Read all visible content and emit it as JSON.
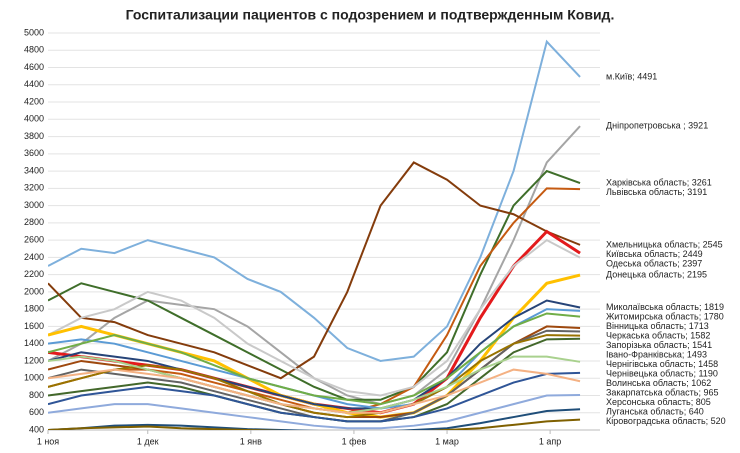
{
  "chart_data": {
    "type": "line",
    "title": "Госпитализации пациентов с подозрением и подтвержденным Ковид.",
    "x": [
      0,
      10,
      20,
      30,
      40,
      50,
      60,
      70,
      80,
      90,
      100,
      110,
      120,
      130,
      140,
      150,
      160
    ],
    "xlim": [
      0,
      166
    ],
    "xticks": [
      {
        "value": 0,
        "label": "1 ноя"
      },
      {
        "value": 30,
        "label": "1 дек"
      },
      {
        "value": 61,
        "label": "1 янв"
      },
      {
        "value": 92,
        "label": "1 фев"
      },
      {
        "value": 120,
        "label": "1 мар"
      },
      {
        "value": 151,
        "label": "1 апр"
      }
    ],
    "ylim": [
      400,
      5000
    ],
    "yticks": [
      400,
      600,
      800,
      1000,
      1200,
      1400,
      1600,
      1800,
      2000,
      2200,
      2400,
      2600,
      2800,
      3000,
      3200,
      3400,
      3600,
      3800,
      4000,
      4200,
      4400,
      4600,
      4800,
      5000
    ],
    "grid": true,
    "series": [
      {
        "label": "м.Київ; 4491",
        "color": "#7eb0dc",
        "values": [
          2300,
          2500,
          2450,
          2600,
          2500,
          2400,
          2150,
          2000,
          1700,
          1350,
          1200,
          1250,
          1600,
          2400,
          3400,
          4900,
          4491
        ]
      },
      {
        "label": "Дніпропетровська ; 3921",
        "color": "#a5a5a5",
        "values": [
          1200,
          1400,
          1700,
          1900,
          1850,
          1800,
          1600,
          1300,
          1000,
          800,
          700,
          800,
          1100,
          1800,
          2600,
          3500,
          3921
        ]
      },
      {
        "label": "Харківська область; 3261",
        "color": "#3f6e2a",
        "values": [
          1900,
          2100,
          2000,
          1900,
          1700,
          1500,
          1300,
          1100,
          900,
          750,
          750,
          900,
          1300,
          2200,
          3000,
          3400,
          3261
        ]
      },
      {
        "label": "Львівська область; 3191",
        "color": "#c55a11",
        "values": [
          900,
          1000,
          1100,
          1100,
          1050,
          950,
          850,
          750,
          650,
          600,
          700,
          900,
          1500,
          2300,
          2800,
          3200,
          3191
        ]
      },
      {
        "label": "Хмельницька область; 2545",
        "color": "#843c0c",
        "values": [
          2100,
          1700,
          1650,
          1500,
          1400,
          1300,
          1150,
          1000,
          1250,
          2000,
          3000,
          3500,
          3300,
          3000,
          2900,
          2700,
          2545
        ]
      },
      {
        "label": "Київська область; 2449",
        "color": "#e31a1c",
        "values": [
          1300,
          1250,
          1200,
          1150,
          1100,
          1000,
          900,
          800,
          700,
          650,
          600,
          700,
          1000,
          1700,
          2300,
          2700,
          2449
        ]
      },
      {
        "label": "Одеська область; 2397",
        "color": "#c9c9c9",
        "values": [
          1500,
          1700,
          1800,
          2000,
          1900,
          1700,
          1400,
          1200,
          1000,
          850,
          800,
          900,
          1200,
          1800,
          2300,
          2600,
          2397
        ]
      },
      {
        "label": "Донецька область; 2195",
        "color": "#ffc000",
        "values": [
          1500,
          1600,
          1500,
          1400,
          1300,
          1200,
          1000,
          800,
          700,
          600,
          550,
          600,
          800,
          1200,
          1700,
          2100,
          2195
        ]
      },
      {
        "label": "Миколаївська область; 1819",
        "color": "#264478",
        "values": [
          1200,
          1300,
          1250,
          1200,
          1100,
          1000,
          900,
          800,
          700,
          650,
          650,
          750,
          1000,
          1400,
          1700,
          1900,
          1819
        ]
      },
      {
        "label": "Житомирська область; 1780",
        "color": "#5b9bd5",
        "values": [
          1400,
          1450,
          1400,
          1300,
          1200,
          1100,
          1000,
          900,
          800,
          700,
          650,
          700,
          900,
          1300,
          1600,
          1800,
          1780
        ]
      },
      {
        "label": "Вінницька область; 1713",
        "color": "#70ad47",
        "values": [
          1300,
          1400,
          1500,
          1400,
          1300,
          1150,
          1000,
          900,
          800,
          750,
          700,
          800,
          1000,
          1300,
          1600,
          1750,
          1713
        ]
      },
      {
        "label": "Черкаська область; 1582",
        "color": "#9e480e",
        "values": [
          1100,
          1200,
          1150,
          1100,
          1000,
          900,
          800,
          700,
          600,
          550,
          550,
          600,
          800,
          1100,
          1400,
          1600,
          1582
        ]
      },
      {
        "label": "Запорізька область; 1541",
        "color": "#636363",
        "values": [
          1000,
          1100,
          1050,
          1000,
          950,
          850,
          750,
          650,
          550,
          500,
          500,
          600,
          800,
          1100,
          1400,
          1550,
          1541
        ]
      },
      {
        "label": "Івано-Франківська; 1493",
        "color": "#997300",
        "values": [
          900,
          1000,
          1100,
          1150,
          1100,
          1000,
          850,
          700,
          600,
          550,
          600,
          700,
          900,
          1200,
          1400,
          1500,
          1493
        ]
      },
      {
        "label": "Чернігівська область; 1458",
        "color": "#43682b",
        "values": [
          800,
          850,
          900,
          950,
          900,
          800,
          700,
          600,
          550,
          500,
          500,
          550,
          700,
          1000,
          1300,
          1450,
          1458
        ]
      },
      {
        "label": "Чернівецька область; 1190",
        "color": "#a9d18e",
        "values": [
          1200,
          1250,
          1200,
          1100,
          1000,
          900,
          800,
          700,
          650,
          600,
          650,
          750,
          900,
          1100,
          1250,
          1250,
          1190
        ]
      },
      {
        "label": "Волинська область; 1062",
        "color": "#2f5597",
        "values": [
          700,
          800,
          850,
          900,
          850,
          800,
          700,
          600,
          550,
          500,
          500,
          550,
          650,
          800,
          950,
          1050,
          1062
        ]
      },
      {
        "label": "Закарпатська область; 965",
        "color": "#f4b183",
        "values": [
          1000,
          1050,
          1100,
          1050,
          1000,
          900,
          800,
          700,
          650,
          600,
          600,
          700,
          800,
          950,
          1100,
          1050,
          965
        ]
      },
      {
        "label": "Херсонська область; 805",
        "color": "#8faadc",
        "values": [
          600,
          650,
          700,
          700,
          650,
          600,
          550,
          500,
          450,
          420,
          420,
          450,
          500,
          600,
          700,
          800,
          805
        ]
      },
      {
        "label": "Луганська область; 640",
        "color": "#1f4e79",
        "values": [
          400,
          420,
          450,
          460,
          450,
          430,
          410,
          400,
          390,
          380,
          380,
          400,
          420,
          480,
          550,
          620,
          640
        ]
      },
      {
        "label": "Кіровоградська область; 520",
        "color": "#7f6000",
        "values": [
          400,
          420,
          430,
          440,
          420,
          410,
          400,
          390,
          380,
          370,
          370,
          380,
          400,
          420,
          460,
          500,
          520
        ]
      }
    ]
  }
}
